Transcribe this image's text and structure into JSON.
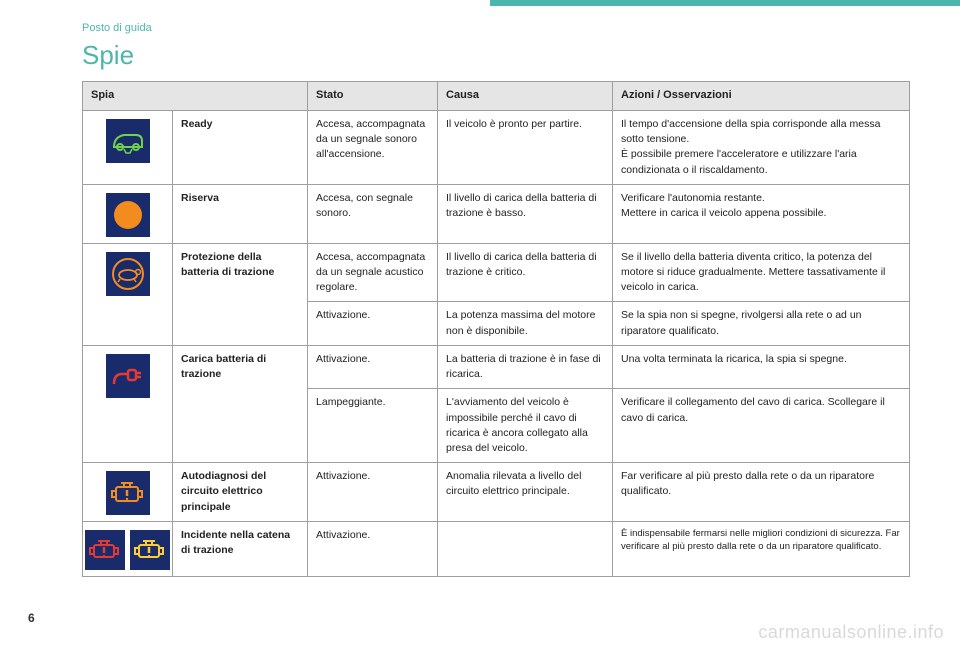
{
  "breadcrumb": "Posto di guida",
  "title": "Spie",
  "pageNumber": "6",
  "watermark": "carmanualsonline.info",
  "colors": {
    "accent": "#4db6ac",
    "iconBg": "#1a2b6b",
    "green": "#6fd24a",
    "orange": "#f28c1e",
    "red": "#e53935",
    "yellow": "#ffcc33"
  },
  "headers": {
    "spia": "Spia",
    "stato": "Stato",
    "causa": "Causa",
    "azioni": "Azioni / Osservazioni"
  },
  "rows": {
    "ready": {
      "name": "Ready",
      "stato": "Accesa, accompagnata da un segnale sonoro all'accensione.",
      "causa": "Il veicolo è pronto per partire.",
      "azioni": "Il tempo d'accensione della spia corrisponde alla messa sotto tensione.\nÈ possibile premere l'acceleratore e utilizzare l'aria condizionata o il riscaldamento."
    },
    "riserva": {
      "name": "Riserva",
      "stato": "Accesa, con segnale sonoro.",
      "causa": "Il livello di carica della batteria di trazione è basso.",
      "azioni": "Verificare l'autonomia restante.\nMettere in carica il veicolo appena possibile."
    },
    "protezione": {
      "name": "Protezione della batteria di trazione",
      "r1": {
        "stato": "Accesa, accompagnata da un segnale acustico regolare.",
        "causa": "Il livello di carica della batteria di trazione è critico.",
        "azioni": "Se il livello della batteria diventa critico, la potenza del motore si riduce gradualmente. Mettere tassativamente il veicolo in carica."
      },
      "r2": {
        "stato": "Attivazione.",
        "causa": "La potenza massima del motore non è disponibile.",
        "azioni": "Se la spia non si spegne, rivolgersi alla rete o ad un riparatore qualificato."
      }
    },
    "carica": {
      "name": "Carica batteria di trazione",
      "r1": {
        "stato": "Attivazione.",
        "causa": "La batteria di trazione è in fase di ricarica.",
        "azioni": "Una volta terminata la ricarica, la spia si spegne."
      },
      "r2": {
        "stato": "Lampeggiante.",
        "causa": "L'avviamento del veicolo è impossibile perché il cavo di ricarica è ancora collegato alla presa del veicolo.",
        "azioni": "Verificare il collegamento del cavo di carica. Scollegare il cavo di carica."
      }
    },
    "autodiagnosi": {
      "name": "Autodiagnosi del circuito elettrico principale",
      "stato": "Attivazione.",
      "causa": "Anomalia rilevata a livello del circuito elettrico principale.",
      "azioni": "Far verificare al più presto dalla rete o da un riparatore qualificato."
    },
    "incidente": {
      "name": "Incidente nella catena di trazione",
      "stato": "Attivazione.",
      "azioni": "È indispensabile fermarsi nelle migliori condizioni di sicurezza. Far verificare al più presto dalla rete o da un riparatore qualificato."
    }
  }
}
